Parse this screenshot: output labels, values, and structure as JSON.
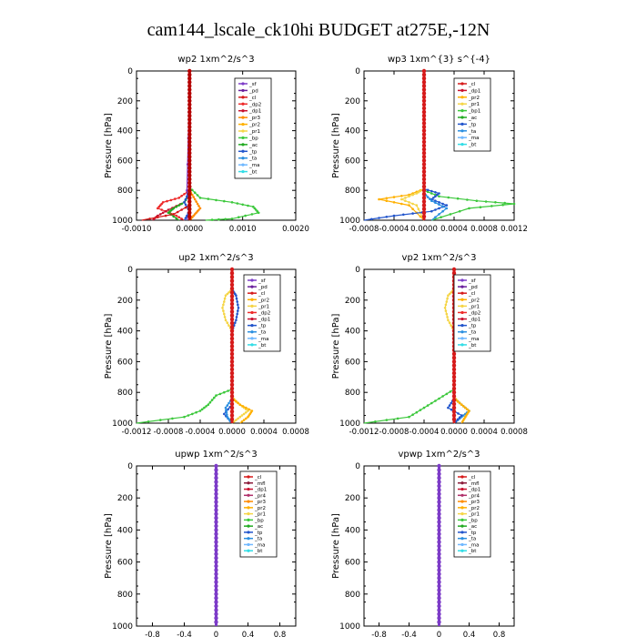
{
  "page": {
    "title": "cam144_lscale_ck10hi  BUDGET at275E,-12N"
  },
  "colors": {
    "sf": "#7d3cc8",
    "pd": "#6a1f9c",
    "cl": "#d61a1a",
    "dp2": "#ee2a2a",
    "dp1": "#c8102e",
    "pr3": "#ff8c00",
    "pr2": "#ffb000",
    "pr1": "#f5d547",
    "bp": "#3cc83c",
    "ac": "#22aa22",
    "tp": "#2255cc",
    "ta": "#2b8fe0",
    "ma": "#70b8ff",
    "bt": "#33dde6",
    "mfl": "#8b1c3b",
    "pr4": "#b0306a",
    "bt_line": "#b40000"
  },
  "chart_data": [
    {
      "type": "line",
      "title": "wp2   1xm^2/s^3",
      "ylabel": "Pressure  [hPa]",
      "xticks": [
        "-0.0010",
        "0.0000",
        "0.0010",
        "0.0020"
      ],
      "xtick_values": [
        -0.001,
        0.0,
        0.001,
        0.002
      ],
      "xlim": [
        -0.001,
        0.002
      ],
      "ylim": [
        1000,
        0
      ],
      "yticks": [
        0,
        200,
        400,
        600,
        800,
        1000
      ],
      "legend": [
        "_sf",
        "_pd",
        "_cl",
        "_dp2",
        "_dp1",
        "_pr3",
        "_pr2",
        "_pr1",
        "_bp",
        "_ac",
        "_tp",
        "_ta",
        "_ma",
        "_bt"
      ],
      "legend_keys": [
        "sf",
        "pd",
        "cl",
        "dp2",
        "dp1",
        "pr3",
        "pr2",
        "pr1",
        "bp",
        "ac",
        "tp",
        "ta",
        "ma",
        "bt"
      ],
      "series": [
        {
          "key": "bp",
          "x": [
            0,
            0,
            0.0002,
            0.0008,
            0.0012,
            0.0013,
            0.0008,
            0.0003
          ],
          "y": [
            0,
            780,
            850,
            880,
            910,
            950,
            990,
            1000
          ]
        },
        {
          "key": "pr3",
          "x": [
            0,
            0,
            0.0001,
            0.0002,
            0.0001,
            0
          ],
          "y": [
            0,
            800,
            860,
            920,
            960,
            1000
          ]
        },
        {
          "key": "dp2",
          "x": [
            0,
            0,
            -0.0002,
            -0.0005,
            -0.0006,
            -0.0003,
            -0.0001
          ],
          "y": [
            0,
            800,
            850,
            880,
            920,
            960,
            1000
          ]
        },
        {
          "key": "dp1",
          "x": [
            0,
            0,
            -0.0001,
            -0.0004,
            -0.0006,
            -0.0007
          ],
          "y": [
            0,
            820,
            880,
            930,
            970,
            1000
          ]
        },
        {
          "key": "ac",
          "x": [
            0,
            0,
            -0.0001,
            -0.0003,
            -0.0004,
            -0.0002
          ],
          "y": [
            0,
            820,
            880,
            920,
            950,
            1000
          ]
        },
        {
          "key": "sf",
          "x": [
            0,
            0,
            -5e-05,
            0.0,
            -5e-05
          ],
          "y": [
            0,
            100,
            800,
            900,
            1000
          ]
        },
        {
          "key": "tp",
          "x": [
            0,
            0,
            -0.0001,
            0.0,
            -0.0001
          ],
          "y": [
            0,
            800,
            880,
            940,
            1000
          ]
        },
        {
          "key": "cl",
          "x": [
            0,
            0,
            -0.0003,
            -0.0009
          ],
          "y": [
            0,
            900,
            960,
            1000
          ]
        },
        {
          "key": "bt_line",
          "x": [
            0,
            0
          ],
          "y": [
            0,
            1000
          ]
        }
      ]
    },
    {
      "type": "line",
      "title": "wp3   1xm^{3} s^{-4}",
      "ylabel": "Pressure  [hPa]",
      "xticks": [
        "-0.0008",
        "-0.0004",
        "0.0000",
        "0.0004",
        "0.0008",
        "0.0012"
      ],
      "xtick_values": [
        -0.0008,
        -0.0004,
        0.0,
        0.0004,
        0.0008,
        0.0012
      ],
      "xlim": [
        -0.0008,
        0.0012
      ],
      "ylim": [
        1000,
        0
      ],
      "yticks": [
        0,
        200,
        400,
        600,
        800,
        1000
      ],
      "legend": [
        "_cl",
        "_dp1",
        "_pr2",
        "_pr1",
        "_bp1",
        "_ac",
        "_tp",
        "_ta",
        "_ma",
        "_bt"
      ],
      "legend_keys": [
        "cl",
        "dp1",
        "pr2",
        "pr1",
        "bp",
        "ac",
        "tp",
        "ta",
        "ma",
        "bt"
      ],
      "series": [
        {
          "key": "bp",
          "x": [
            0,
            0,
            0.0002,
            0.0007,
            0.0012,
            0.0006,
            0.0001
          ],
          "y": [
            0,
            800,
            840,
            870,
            890,
            920,
            1000
          ]
        },
        {
          "key": "pr2",
          "x": [
            0,
            0,
            -0.0002,
            -0.0006,
            -0.0002,
            0
          ],
          "y": [
            0,
            790,
            830,
            860,
            900,
            1000
          ]
        },
        {
          "key": "pr1",
          "x": [
            0,
            0,
            -0.0001,
            -0.0003,
            -0.0001,
            0
          ],
          "y": [
            0,
            790,
            820,
            860,
            900,
            1000
          ]
        },
        {
          "key": "tp",
          "x": [
            0,
            0,
            0.0002,
            0.0001,
            0.0003,
            0.0001,
            -0.0004,
            -0.0008
          ],
          "y": [
            0,
            790,
            820,
            860,
            900,
            940,
            970,
            1000
          ]
        },
        {
          "key": "ta",
          "x": [
            0,
            0,
            0.0001,
            0.0003,
            0.0001
          ],
          "y": [
            0,
            820,
            870,
            920,
            1000
          ]
        },
        {
          "key": "cl",
          "x": [
            0,
            0
          ],
          "y": [
            0,
            1000
          ]
        }
      ]
    },
    {
      "type": "line",
      "title": "up2   1xm^2/s^3",
      "ylabel": "Pressure  [hPa]",
      "xticks": [
        "-0.0012",
        "-0.0008",
        "-0.0004",
        "0.0000",
        "0.0004",
        "0.0008"
      ],
      "xtick_values": [
        -0.0012,
        -0.0008,
        -0.0004,
        0.0,
        0.0004,
        0.0008
      ],
      "xlim": [
        -0.0012,
        0.0008
      ],
      "ylim": [
        1000,
        0
      ],
      "yticks": [
        0,
        200,
        400,
        600,
        800,
        1000
      ],
      "legend": [
        "_sf",
        "_pd",
        "_cl",
        "_pr2",
        "_pr1",
        "_dp2",
        "_dp1",
        "_tp",
        "_ta",
        "_ma",
        "_bt"
      ],
      "legend_keys": [
        "sf",
        "pd",
        "cl",
        "pr2",
        "pr1",
        "dp2",
        "dp1",
        "tp",
        "ta",
        "ma",
        "bt"
      ],
      "series": [
        {
          "key": "pr1",
          "x": [
            0,
            0,
            -8e-05,
            -0.00012,
            -8e-05,
            0,
            0,
            0.0001,
            0.0002,
            0.0001,
            0
          ],
          "y": [
            0,
            130,
            170,
            250,
            330,
            400,
            830,
            880,
            920,
            960,
            1000
          ]
        },
        {
          "key": "pr2",
          "x": [
            0,
            0,
            0.0001,
            0.00025,
            0.0002,
            0.0001
          ],
          "y": [
            0,
            840,
            880,
            920,
            960,
            1000
          ]
        },
        {
          "key": "tp",
          "x": [
            0,
            0,
            5e-05,
            8e-05,
            5e-05,
            0,
            0,
            -0.0001,
            0
          ],
          "y": [
            0,
            130,
            170,
            250,
            330,
            400,
            880,
            940,
            1000
          ]
        },
        {
          "key": "bp",
          "x": [
            0,
            0,
            -0.0002,
            -0.0003,
            -0.0004,
            -0.0006,
            -0.0012
          ],
          "y": [
            0,
            780,
            820,
            880,
            920,
            960,
            1000
          ]
        },
        {
          "key": "ta",
          "x": [
            0,
            0,
            -8e-05,
            -6e-05,
            0
          ],
          "y": [
            0,
            840,
            900,
            960,
            1000
          ]
        },
        {
          "key": "cl",
          "x": [
            0,
            0
          ],
          "y": [
            0,
            1000
          ]
        }
      ]
    },
    {
      "type": "line",
      "title": "vp2   1xm^2/s^3",
      "ylabel": "Pressure  [hPa]",
      "xticks": [
        "-0.0012",
        "-0.0008",
        "-0.0004",
        "0.0000",
        "0.0004",
        "0.0008"
      ],
      "xtick_values": [
        -0.0012,
        -0.0008,
        -0.0004,
        0.0,
        0.0004,
        0.0008
      ],
      "xlim": [
        -0.0012,
        0.0008
      ],
      "ylim": [
        1000,
        0
      ],
      "yticks": [
        0,
        200,
        400,
        600,
        800,
        1000
      ],
      "legend": [
        "_sf",
        "_pd",
        "_cl",
        "_pr2",
        "_pr1",
        "_dp2",
        "_dp1",
        "_tp",
        "_ta",
        "_ma",
        "_bt"
      ],
      "legend_keys": [
        "sf",
        "pd",
        "cl",
        "pr2",
        "pr1",
        "dp2",
        "dp1",
        "tp",
        "ta",
        "ma",
        "bt"
      ],
      "series": [
        {
          "key": "pr1",
          "x": [
            0,
            0,
            -8e-05,
            -0.00012,
            -8e-05,
            0,
            0,
            0.0001,
            0.0002,
            0.0001,
            0
          ],
          "y": [
            0,
            130,
            170,
            250,
            330,
            400,
            830,
            880,
            920,
            960,
            1000
          ]
        },
        {
          "key": "ta",
          "x": [
            0,
            0,
            8e-05,
            0.00012,
            8e-05,
            0,
            0,
            0.0001,
            0.0002,
            0.0001,
            0
          ],
          "y": [
            0,
            130,
            170,
            250,
            330,
            400,
            840,
            880,
            920,
            960,
            1000
          ]
        },
        {
          "key": "pr2",
          "x": [
            0,
            0,
            0.0001,
            0.0002,
            0.00015,
            0.0001
          ],
          "y": [
            0,
            840,
            880,
            920,
            960,
            1000
          ]
        },
        {
          "key": "bp",
          "x": [
            0,
            0,
            -0.0002,
            -0.0004,
            -0.0006,
            -0.0012
          ],
          "y": [
            0,
            780,
            840,
            900,
            960,
            1000
          ]
        },
        {
          "key": "tp",
          "x": [
            0,
            0,
            -8e-05,
            0.0001,
            0
          ],
          "y": [
            0,
            840,
            900,
            950,
            1000
          ]
        },
        {
          "key": "cl",
          "x": [
            0,
            0
          ],
          "y": [
            0,
            1000
          ]
        }
      ]
    },
    {
      "type": "line",
      "title": "upwp   1xm^2/s^3",
      "ylabel": "Pressure  [hPa]",
      "xticks": [
        "-0.8",
        "-0.4",
        "0",
        "0.4",
        "0.8"
      ],
      "xtick_values": [
        -0.8,
        -0.4,
        0,
        0.4,
        0.8
      ],
      "xlim": [
        -1.0,
        1.0
      ],
      "ylim": [
        1000,
        0
      ],
      "yticks": [
        0,
        200,
        400,
        600,
        800,
        1000
      ],
      "legend": [
        "_cl",
        "_mfl",
        "_dp1",
        "_pr4",
        "_pr3",
        "_pr2",
        "_pr1",
        "_bp",
        "_ac",
        "_tp",
        "_ta",
        "_ma",
        "_bt"
      ],
      "legend_keys": [
        "cl",
        "mfl",
        "dp1",
        "pr4",
        "pr3",
        "pr2",
        "pr1",
        "bp",
        "ac",
        "tp",
        "ta",
        "ma",
        "bt"
      ],
      "series": [
        {
          "key": "sf",
          "x": [
            0,
            0
          ],
          "y": [
            0,
            1000
          ]
        }
      ]
    },
    {
      "type": "line",
      "title": "vpwp   1xm^2/s^3",
      "ylabel": "Pressure  [hPa]",
      "xticks": [
        "-0.8",
        "-0.4",
        "0",
        "0.4",
        "0.8"
      ],
      "xtick_values": [
        -0.8,
        -0.4,
        0,
        0.4,
        0.8
      ],
      "xlim": [
        -1.0,
        1.0
      ],
      "ylim": [
        1000,
        0
      ],
      "yticks": [
        0,
        200,
        400,
        600,
        800,
        1000
      ],
      "legend": [
        "_cl",
        "_mfl",
        "_dp1",
        "_pr4",
        "_pr3",
        "_pr2",
        "_pr1",
        "_bp",
        "_ac",
        "_tp",
        "_ta",
        "_ma",
        "_bt"
      ],
      "legend_keys": [
        "cl",
        "mfl",
        "dp1",
        "pr4",
        "pr3",
        "pr2",
        "pr1",
        "bp",
        "ac",
        "tp",
        "ta",
        "ma",
        "bt"
      ],
      "series": [
        {
          "key": "sf",
          "x": [
            0,
            0
          ],
          "y": [
            0,
            1000
          ]
        }
      ]
    }
  ]
}
